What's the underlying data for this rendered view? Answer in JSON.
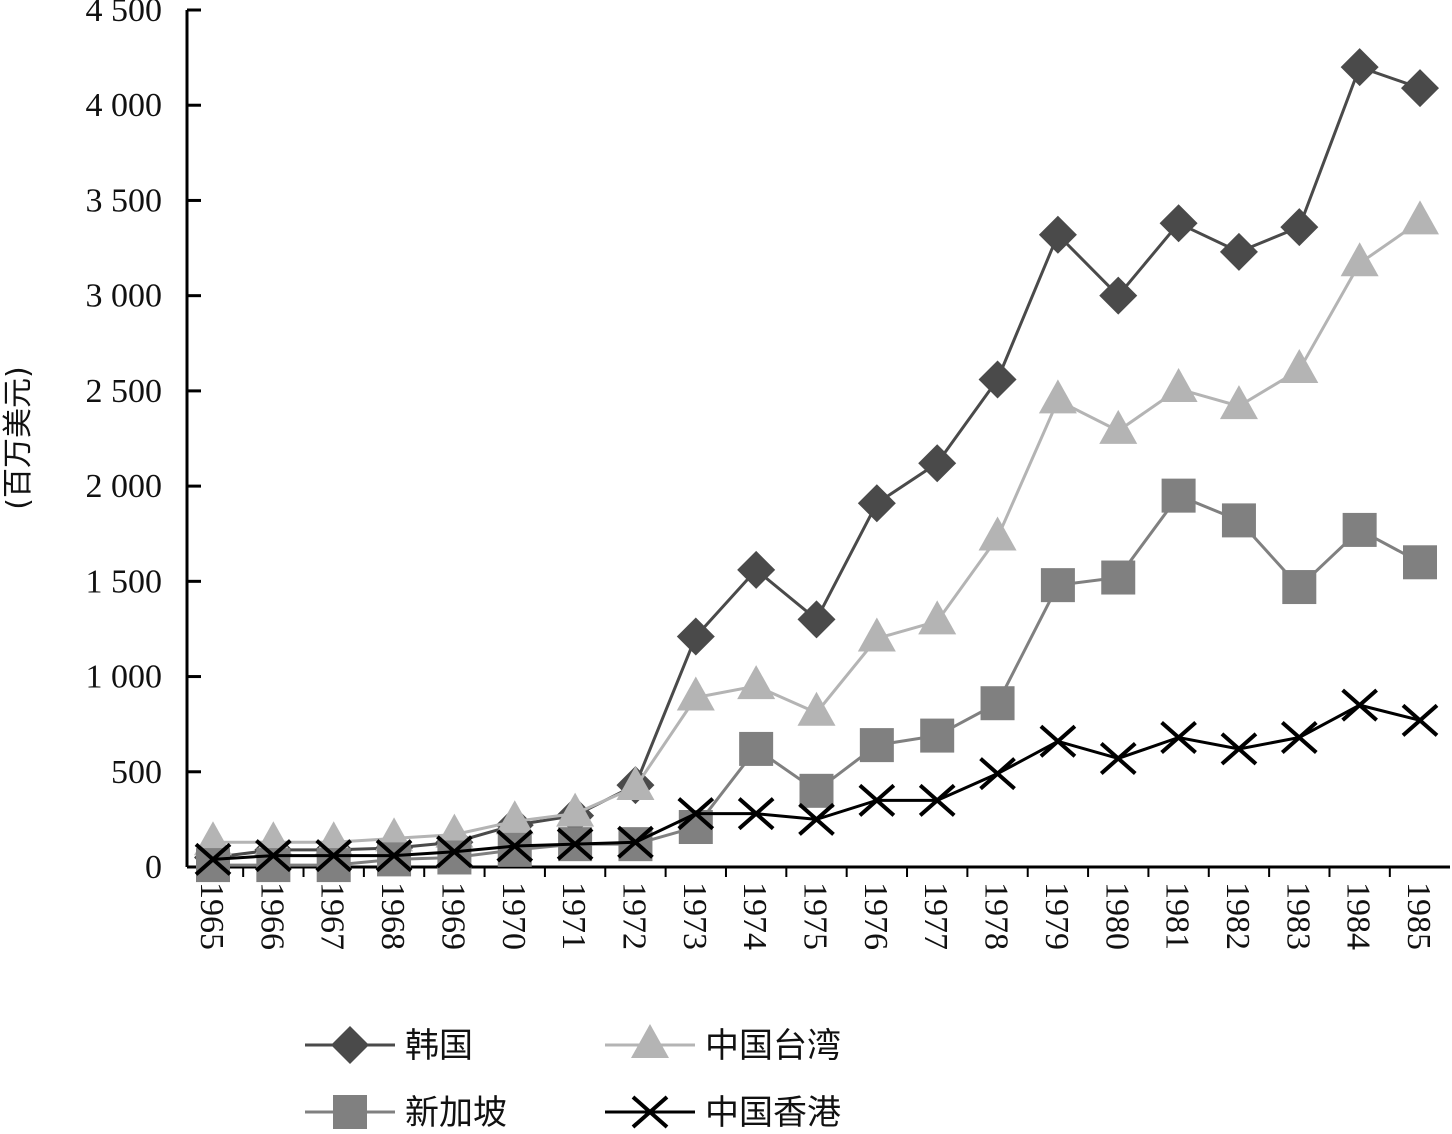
{
  "chart_data": {
    "type": "line",
    "title": "",
    "xlabel": "",
    "ylabel": "(百万美元)",
    "ylim": [
      0,
      4500
    ],
    "yticks": [
      0,
      500,
      1000,
      1500,
      2000,
      2500,
      3000,
      3500,
      4000,
      4500
    ],
    "ytick_labels": [
      "0",
      "500",
      "1 000",
      "1 500",
      "2 000",
      "2 500",
      "3 000",
      "3 500",
      "4 000",
      "4 500"
    ],
    "x": [
      "1965",
      "1966",
      "1967",
      "1968",
      "1969",
      "1970",
      "1971",
      "1972",
      "1973",
      "1974",
      "1975",
      "1976",
      "1977",
      "1978",
      "1979",
      "1980",
      "1981",
      "1982",
      "1983",
      "1984",
      "1985"
    ],
    "grid": false,
    "legend_position": "bottom",
    "series": [
      {
        "name": "韩国",
        "marker": "diamond",
        "color": "#4a4a4a",
        "values": [
          50,
          90,
          90,
          100,
          130,
          220,
          270,
          430,
          1210,
          1560,
          1300,
          1910,
          2120,
          2560,
          3320,
          3000,
          3380,
          3230,
          3360,
          4200,
          4090
        ]
      },
      {
        "name": "中国台湾",
        "marker": "triangle",
        "color": "#b4b4b4",
        "values": [
          130,
          130,
          130,
          150,
          170,
          240,
          280,
          420,
          890,
          950,
          810,
          1200,
          1290,
          1730,
          2450,
          2290,
          2510,
          2420,
          2610,
          3170,
          3390
        ]
      },
      {
        "name": "新加坡",
        "marker": "square",
        "color": "#808080",
        "values": [
          10,
          10,
          10,
          40,
          50,
          90,
          120,
          120,
          210,
          620,
          400,
          640,
          690,
          860,
          1480,
          1520,
          1950,
          1820,
          1470,
          1770,
          1600
        ]
      },
      {
        "name": "中国香港",
        "marker": "x",
        "color": "#000000",
        "values": [
          40,
          60,
          60,
          60,
          80,
          110,
          120,
          130,
          280,
          280,
          250,
          350,
          350,
          490,
          660,
          570,
          680,
          620,
          680,
          850,
          770
        ]
      }
    ]
  }
}
